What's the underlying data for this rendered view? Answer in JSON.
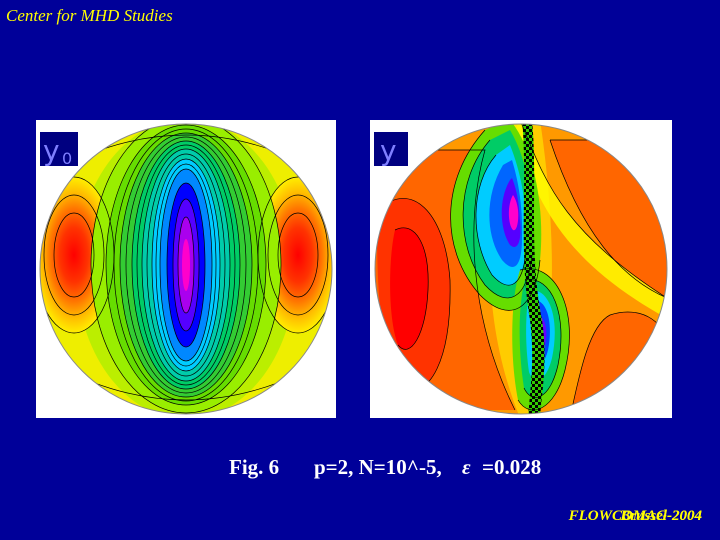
{
  "header": {
    "title": "Center for MHD Studies"
  },
  "panels": {
    "left": {
      "label": "y0",
      "label_main": "y",
      "label_sub": "0"
    },
    "right": {
      "label": "y"
    }
  },
  "caption": {
    "figure": "Fig. 6",
    "params": "p=2, N=10^-5,",
    "epsilon_symbol": "ε",
    "epsilon_value": "=0.028"
  },
  "footer": {
    "line1": "FLOWCOMAG-2004",
    "line2": "Brussel-2004"
  },
  "colors": {
    "background": "#000099",
    "header": "#ffff00",
    "caption": "#ffffff",
    "label_box": "#000080",
    "label_text": "#7f7fff"
  }
}
